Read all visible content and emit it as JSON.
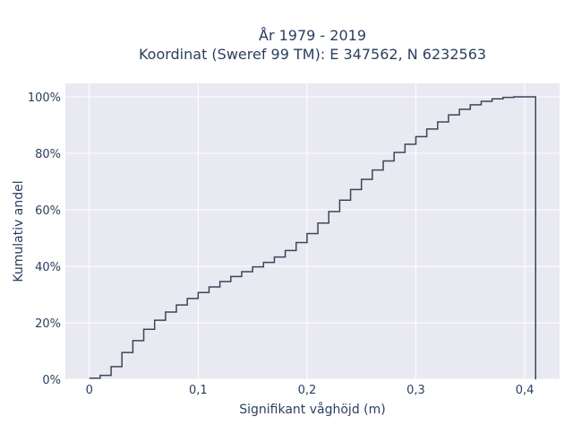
{
  "chart_data": {
    "type": "line",
    "line_shape": "step",
    "title_line1": "År 1979 - 2019",
    "title_line2": "Koordinat (Sweref 99 TM): E 347562, N 6232563",
    "xlabel": "Signifikant våghöjd (m)",
    "ylabel": "Kumulativ andel",
    "xlim": [
      -0.022,
      0.432
    ],
    "ylim": [
      0,
      1.0
    ],
    "x_ticks": [
      0,
      0.1,
      0.2,
      0.3,
      0.4
    ],
    "x_tick_labels": [
      "0",
      "0,1",
      "0,2",
      "0,3",
      "0,4"
    ],
    "y_ticks": [
      0,
      0.2,
      0.4,
      0.6,
      0.8,
      1.0
    ],
    "y_tick_labels": [
      "0%",
      "20%",
      "40%",
      "60%",
      "80%",
      "100%"
    ],
    "grid": true,
    "colors": {
      "line": "#3b4559",
      "plot_bg": "#e9e9f2",
      "grid": "#ffffff",
      "text": "#2a3f5f"
    },
    "series": [
      {
        "x": [
          0,
          0.01,
          0.02,
          0.03,
          0.04,
          0.05,
          0.06,
          0.07,
          0.08,
          0.09,
          0.1,
          0.11,
          0.12,
          0.13,
          0.14,
          0.15,
          0.16,
          0.17,
          0.18,
          0.19,
          0.2,
          0.21,
          0.22,
          0.23,
          0.24,
          0.25,
          0.26,
          0.27,
          0.28,
          0.29,
          0.3,
          0.31,
          0.32,
          0.33,
          0.34,
          0.35,
          0.36,
          0.37,
          0.38,
          0.39,
          0.4,
          0.41
        ],
        "y": [
          0.004,
          0.014,
          0.045,
          0.095,
          0.137,
          0.177,
          0.209,
          0.238,
          0.263,
          0.286,
          0.307,
          0.327,
          0.346,
          0.364,
          0.381,
          0.398,
          0.414,
          0.433,
          0.456,
          0.484,
          0.516,
          0.553,
          0.594,
          0.634,
          0.672,
          0.708,
          0.741,
          0.773,
          0.803,
          0.832,
          0.859,
          0.886,
          0.911,
          0.936,
          0.956,
          0.972,
          0.984,
          0.993,
          0.998,
          1.0,
          1.0,
          0.0
        ]
      }
    ]
  }
}
